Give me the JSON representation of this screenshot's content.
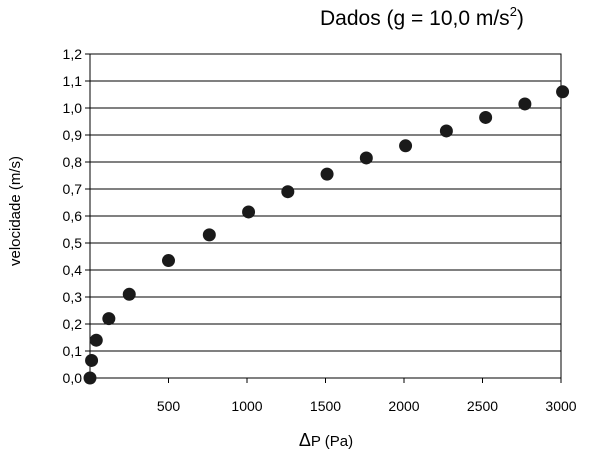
{
  "title": {
    "prefix": "Dados (g = 10,0 m/s",
    "exponent": "2",
    "suffix": ")"
  },
  "chart_data": {
    "type": "scatter",
    "xlabel_symbol": "Δ",
    "xlabel_rest": "P (Pa)",
    "ylabel": "velocidade (m/s)",
    "xlim": [
      0,
      3000
    ],
    "ylim": [
      0,
      1.2
    ],
    "x_ticks": [
      "500",
      "1000",
      "1500",
      "2000",
      "2500",
      "3000"
    ],
    "y_ticks": [
      "0,0",
      "0,1",
      "0,2",
      "0,3",
      "0,4",
      "0,5",
      "0,6",
      "0,7",
      "0,8",
      "0,9",
      "1,0",
      "1,1",
      "1,2"
    ],
    "grid": "horizontal",
    "marker_color": "#1a1a1a",
    "points": [
      {
        "x": 0,
        "y": 0.0
      },
      {
        "x": 10,
        "y": 0.065
      },
      {
        "x": 40,
        "y": 0.14
      },
      {
        "x": 120,
        "y": 0.22
      },
      {
        "x": 250,
        "y": 0.31
      },
      {
        "x": 500,
        "y": 0.435
      },
      {
        "x": 760,
        "y": 0.53
      },
      {
        "x": 1010,
        "y": 0.615
      },
      {
        "x": 1260,
        "y": 0.69
      },
      {
        "x": 1510,
        "y": 0.755
      },
      {
        "x": 1760,
        "y": 0.815
      },
      {
        "x": 2010,
        "y": 0.86
      },
      {
        "x": 2270,
        "y": 0.915
      },
      {
        "x": 2520,
        "y": 0.965
      },
      {
        "x": 2770,
        "y": 1.015
      },
      {
        "x": 3010,
        "y": 1.06
      }
    ]
  }
}
